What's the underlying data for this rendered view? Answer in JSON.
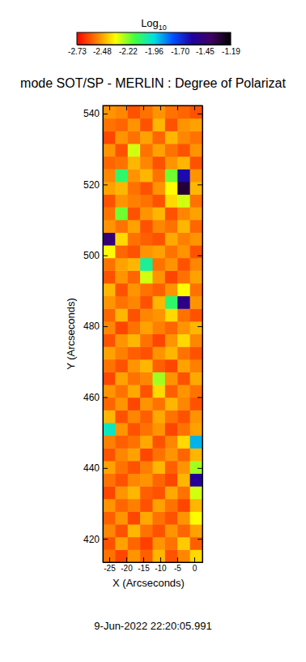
{
  "chart_data": {
    "type": "heatmap",
    "title": "mode SOT/SP - MERLIN : Degree of Polarizat",
    "xlabel": "X (Arcseconds)",
    "ylabel": "Y (Arcseconds)",
    "annotation": "9-Jun-2022 22:20:05.991",
    "xlim": [
      -26.9,
      2.4
    ],
    "ylim": [
      413.4,
      542.3
    ],
    "xticks": [
      -25,
      -20,
      -15,
      -10,
      -5,
      0
    ],
    "yticks": [
      420,
      440,
      460,
      480,
      500,
      520,
      540
    ],
    "colorbar": {
      "label": "Log10",
      "range": [
        -2.73,
        -1.19
      ],
      "ticks": [
        -2.73,
        -2.48,
        -2.22,
        -1.96,
        {
          "value": -1.7,
          "label": "-1.70"
        },
        -1.45,
        -1.19
      ]
    },
    "x_bins": [
      -26.9,
      -23.24,
      -19.57,
      -15.91,
      -12.25,
      -8.59,
      -4.92,
      -1.26,
      2.4
    ],
    "y_bins": [
      413.4,
      416.98,
      420.56,
      424.14,
      427.72,
      431.3,
      434.88,
      438.46,
      442.04,
      445.62,
      449.2,
      452.78,
      456.36,
      459.94,
      463.52,
      467.1,
      470.68,
      474.26,
      477.84,
      481.42,
      485.0,
      488.58,
      492.16,
      495.74,
      499.32,
      502.9,
      506.48,
      510.06,
      513.64,
      517.22,
      520.8,
      524.38,
      527.96,
      531.54,
      535.12,
      538.7,
      542.3
    ],
    "cells": [
      [
        -2.55,
        -2.62,
        -2.5,
        -2.58,
        -2.45,
        -2.6,
        -2.52,
        -2.4
      ],
      [
        -2.6,
        -2.48,
        -2.57,
        -2.63,
        -2.5,
        -2.55,
        -2.42,
        -2.58
      ],
      [
        -2.52,
        -2.6,
        -2.45,
        -2.55,
        -2.6,
        -2.5,
        -2.57,
        -2.48
      ],
      [
        -2.58,
        -2.5,
        -2.62,
        -2.47,
        -2.55,
        -2.6,
        -2.5,
        -2.35
      ],
      [
        -2.5,
        -2.57,
        -2.53,
        -2.6,
        -2.48,
        -2.55,
        -2.62,
        -2.45
      ],
      [
        -2.62,
        -2.5,
        -2.45,
        -2.58,
        -2.6,
        -2.47,
        -2.55,
        -2.3
      ],
      [
        -2.55,
        -2.6,
        -2.52,
        -2.5,
        -2.57,
        -2.62,
        -2.45,
        -1.55
      ],
      [
        -2.48,
        -2.55,
        -2.6,
        -2.53,
        -2.45,
        -2.58,
        -2.5,
        -2.25
      ],
      [
        -2.6,
        -2.52,
        -2.48,
        -2.62,
        -2.55,
        -2.5,
        -2.57,
        -2.45
      ],
      [
        -2.53,
        -2.58,
        -2.55,
        -2.47,
        -2.6,
        -2.52,
        -2.4,
        -1.9
      ],
      [
        -2.0,
        -2.5,
        -2.6,
        -2.55,
        -2.5,
        -2.62,
        -2.55,
        -2.48
      ],
      [
        -2.45,
        -2.6,
        -2.52,
        -2.58,
        -2.47,
        -2.55,
        -2.6,
        -2.5
      ],
      [
        -2.57,
        -2.5,
        -2.62,
        -2.5,
        -2.55,
        -2.45,
        -2.52,
        -2.6
      ],
      [
        -2.5,
        -2.55,
        -2.47,
        -2.6,
        -2.4,
        -2.58,
        -2.5,
        -2.55
      ],
      [
        -2.62,
        -2.48,
        -2.55,
        -2.52,
        -2.25,
        -2.5,
        -2.6,
        -2.47
      ],
      [
        -2.55,
        -2.6,
        -2.5,
        -2.45,
        -2.58,
        -2.62,
        -2.48,
        -2.53
      ],
      [
        -2.48,
        -2.53,
        -2.58,
        -2.6,
        -2.5,
        -2.45,
        -2.55,
        -2.6
      ],
      [
        -2.6,
        -2.5,
        -2.45,
        -2.55,
        -2.62,
        -2.5,
        -2.4,
        -2.52
      ],
      [
        -2.52,
        -2.62,
        -2.55,
        -2.48,
        -2.53,
        -2.57,
        -2.5,
        -2.45
      ],
      [
        -2.57,
        -2.45,
        -2.6,
        -2.52,
        -2.5,
        -2.4,
        -2.55,
        -2.6
      ],
      [
        -2.5,
        -2.55,
        -2.52,
        -2.6,
        -2.45,
        -2.1,
        -1.5,
        -2.5
      ],
      [
        -2.45,
        -2.6,
        -2.5,
        -2.55,
        -2.58,
        -2.5,
        -2.35,
        -2.55
      ],
      [
        -2.6,
        -2.5,
        -2.57,
        -2.3,
        -2.5,
        -2.62,
        -2.55,
        -2.48
      ],
      [
        -2.55,
        -2.48,
        -2.45,
        -2.05,
        -2.55,
        -2.5,
        -2.6,
        -2.52
      ],
      [
        -2.35,
        -2.57,
        -2.6,
        -2.5,
        -2.48,
        -2.55,
        -2.5,
        -2.6
      ],
      [
        -1.45,
        -2.4,
        -2.55,
        -2.58,
        -2.6,
        -2.47,
        -2.53,
        -2.5
      ],
      [
        -2.5,
        -2.55,
        -2.48,
        -2.6,
        -2.52,
        -2.55,
        -2.45,
        -2.57
      ],
      [
        -2.55,
        -2.2,
        -2.6,
        -2.5,
        -2.45,
        -2.6,
        -2.52,
        -2.48
      ],
      [
        -2.6,
        -2.5,
        -2.53,
        -2.55,
        -2.6,
        -2.4,
        -2.3,
        -2.55
      ],
      [
        -2.48,
        -2.45,
        -2.55,
        -2.6,
        -2.5,
        -2.35,
        -1.3,
        -2.45
      ],
      [
        -2.52,
        -2.1,
        -2.5,
        -2.45,
        -2.55,
        -2.2,
        -1.6,
        -2.5
      ],
      [
        -2.57,
        -2.55,
        -2.45,
        -2.52,
        -2.6,
        -2.5,
        -2.45,
        -2.6
      ],
      [
        -2.5,
        -2.6,
        -2.3,
        -2.55,
        -2.48,
        -2.55,
        -2.6,
        -2.5
      ],
      [
        -2.62,
        -2.5,
        -2.55,
        -2.48,
        -2.57,
        -2.45,
        -2.52,
        -2.55
      ],
      [
        -2.55,
        -2.57,
        -2.5,
        -2.6,
        -2.45,
        -2.6,
        -2.5,
        -2.48
      ],
      [
        -2.5,
        -2.52,
        -2.6,
        -2.55,
        -2.5,
        -2.55,
        -2.57,
        -2.6
      ]
    ]
  }
}
